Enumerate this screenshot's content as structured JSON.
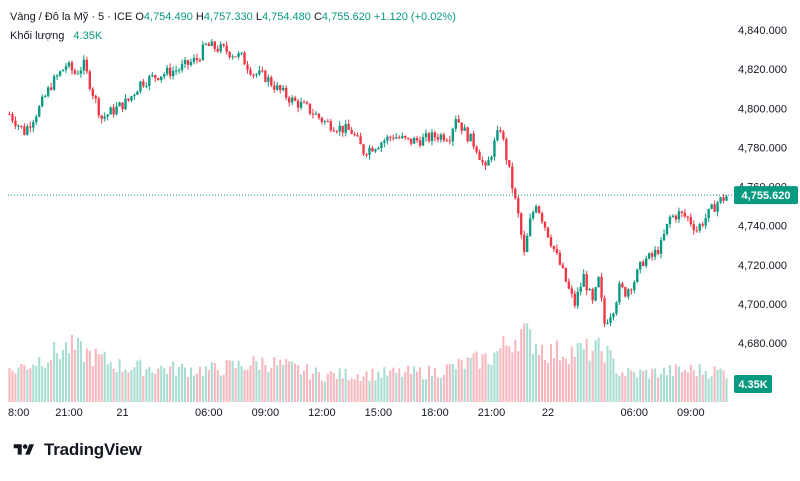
{
  "header": {
    "symbol": "Vàng / Đô la Mỹ · 5 · ICE",
    "open_label": "O",
    "open": "4,754.490",
    "high_label": "H",
    "high": "4,757.330",
    "low_label": "L",
    "low": "4,754.480",
    "close_label": "C",
    "close": "4,755.620",
    "change": "+1.120 (+0.02%)",
    "volume_label": "Khối lượng",
    "volume": "4.35K"
  },
  "brand": {
    "name": "TradingView"
  },
  "colors": {
    "up": "#089981",
    "down": "#f23645",
    "vol_up": "#a7ddd3",
    "vol_down": "#f7b7bd",
    "text": "#131722"
  },
  "chart_data": {
    "type": "candlestick",
    "y_axis": {
      "ticks": [
        4680,
        4700,
        4720,
        4740,
        4760,
        4780,
        4800,
        4820,
        4840
      ],
      "tick_labels": [
        "4,680.000",
        "4,700.000",
        "4,720.000",
        "4,740.000",
        "4,760.000",
        "4,780.000",
        "4,800.000",
        "4,820.000",
        "4,840.000"
      ],
      "range": [
        4664,
        4844
      ]
    },
    "x_axis": {
      "tick_labels": [
        "8:00",
        "21:00",
        "21",
        "06:00",
        "09:00",
        "12:00",
        "15:00",
        "18:00",
        "21:00",
        "22",
        "06:00",
        "09:00"
      ],
      "tick_index": [
        0,
        20,
        38,
        67,
        86,
        105,
        124,
        143,
        162,
        181,
        210,
        229
      ]
    },
    "price_line": {
      "value": 4755.62,
      "label": "4,755.620"
    },
    "volume_label": "4.35K",
    "close_path": [
      [
        0,
        4797
      ],
      [
        5,
        4788
      ],
      [
        10,
        4800
      ],
      [
        14,
        4812
      ],
      [
        19,
        4822
      ],
      [
        22,
        4818
      ],
      [
        25,
        4822
      ],
      [
        28,
        4808
      ],
      [
        31,
        4795
      ],
      [
        36,
        4800
      ],
      [
        40,
        4804
      ],
      [
        44,
        4813
      ],
      [
        50,
        4817
      ],
      [
        57,
        4820
      ],
      [
        63,
        4825
      ],
      [
        66,
        4832
      ],
      [
        72,
        4830
      ],
      [
        78,
        4826
      ],
      [
        82,
        4818
      ],
      [
        86,
        4816
      ],
      [
        90,
        4810
      ],
      [
        95,
        4804
      ],
      [
        100,
        4800
      ],
      [
        106,
        4793
      ],
      [
        111,
        4790
      ],
      [
        115,
        4788
      ],
      [
        119,
        4778
      ],
      [
        124,
        4782
      ],
      [
        129,
        4786
      ],
      [
        134,
        4783
      ],
      [
        139,
        4784
      ],
      [
        144,
        4786
      ],
      [
        148,
        4786
      ],
      [
        150,
        4796
      ],
      [
        153,
        4788
      ],
      [
        157,
        4780
      ],
      [
        160,
        4768
      ],
      [
        163,
        4782
      ],
      [
        165,
        4790
      ],
      [
        167,
        4775
      ],
      [
        169,
        4760
      ],
      [
        171,
        4745
      ],
      [
        173,
        4725
      ],
      [
        175,
        4742
      ],
      [
        177,
        4752
      ],
      [
        180,
        4740
      ],
      [
        183,
        4728
      ],
      [
        186,
        4716
      ],
      [
        188,
        4707
      ],
      [
        190,
        4700
      ],
      [
        193,
        4714
      ],
      [
        196,
        4700
      ],
      [
        198,
        4712
      ],
      [
        200,
        4690
      ],
      [
        203,
        4698
      ],
      [
        205,
        4708
      ],
      [
        207,
        4706
      ],
      [
        210,
        4712
      ],
      [
        213,
        4722
      ],
      [
        216,
        4724
      ],
      [
        219,
        4730
      ],
      [
        222,
        4744
      ],
      [
        225,
        4746
      ],
      [
        228,
        4744
      ],
      [
        231,
        4738
      ],
      [
        235,
        4746
      ],
      [
        238,
        4752
      ],
      [
        241,
        4755
      ]
    ],
    "volume_levels": [
      [
        0,
        0.3
      ],
      [
        20,
        0.55
      ],
      [
        38,
        0.35
      ],
      [
        67,
        0.32
      ],
      [
        86,
        0.4
      ],
      [
        105,
        0.27
      ],
      [
        124,
        0.28
      ],
      [
        143,
        0.3
      ],
      [
        162,
        0.45
      ],
      [
        172,
        0.7
      ],
      [
        181,
        0.5
      ],
      [
        200,
        0.52
      ],
      [
        205,
        0.3
      ],
      [
        210,
        0.28
      ],
      [
        229,
        0.32
      ],
      [
        241,
        0.3
      ]
    ]
  }
}
